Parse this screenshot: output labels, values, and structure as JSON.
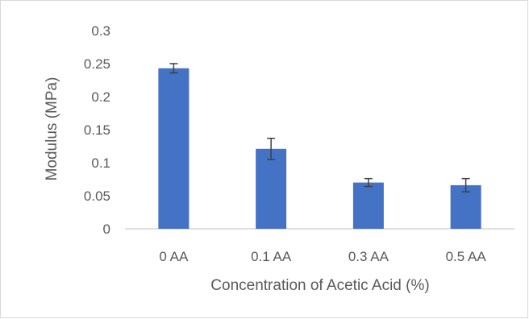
{
  "chart_data": {
    "type": "bar",
    "title": "",
    "xlabel": "Concentration of Acetic Acid (%)",
    "ylabel": "Modulus (MPa)",
    "categories": [
      "0 AA",
      "0.1 AA",
      "0.3 AA",
      "0.5 AA"
    ],
    "values": [
      0.243,
      0.121,
      0.07,
      0.066
    ],
    "error": [
      0.007,
      0.016,
      0.006,
      0.01
    ],
    "ylim": [
      0,
      0.3
    ],
    "yticks": [
      "0",
      "0.05",
      "0.1",
      "0.15",
      "0.2",
      "0.25",
      "0.3"
    ],
    "grid": false,
    "legend": "none",
    "colors": {
      "bar": "#4472C4",
      "error_bar": "#404040",
      "axis": "#bfbfbf",
      "text": "#595959"
    }
  }
}
